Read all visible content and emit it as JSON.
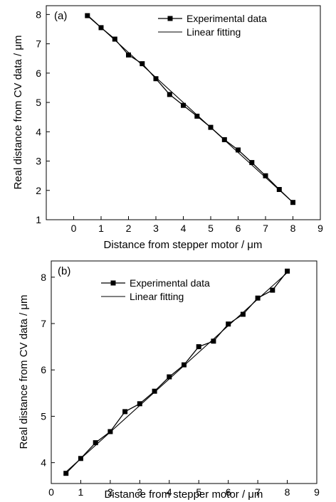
{
  "chart_data": [
    {
      "type": "line",
      "panel_label": "(a)",
      "xlabel": "Distance from stepper motor / μm",
      "ylabel": "Real distance from  CV data / μm",
      "xlim": [
        -1,
        9
      ],
      "ylim": [
        1,
        8.3
      ],
      "xticks": [
        0,
        1,
        2,
        3,
        4,
        5,
        6,
        7,
        8,
        9
      ],
      "yticks": [
        1,
        2,
        3,
        4,
        5,
        6,
        7,
        8
      ],
      "grid": false,
      "legend_position": "top-right",
      "series": [
        {
          "name": "Experimental data",
          "style": "line-with-square-markers",
          "color": "#000000",
          "x": [
            0.5,
            1.0,
            1.5,
            2.0,
            2.5,
            3.0,
            3.5,
            4.0,
            4.5,
            5.0,
            5.5,
            6.0,
            6.5,
            7.0,
            7.5,
            8.0
          ],
          "y": [
            7.96,
            7.55,
            7.16,
            6.62,
            6.32,
            5.81,
            5.27,
            4.9,
            4.53,
            4.15,
            3.73,
            3.38,
            2.95,
            2.5,
            2.03,
            1.59
          ]
        },
        {
          "name": "Linear fitting",
          "style": "line",
          "color": "#000000",
          "x": [
            0.5,
            8.0
          ],
          "y": [
            7.98,
            1.59
          ]
        }
      ]
    },
    {
      "type": "line",
      "panel_label": "(b)",
      "xlabel": "Distance from stepper motor / μm",
      "ylabel": "Real distance from CV data / μm",
      "xlim": [
        0,
        9
      ],
      "ylim": [
        3.55,
        8.35
      ],
      "xticks": [
        0,
        1,
        2,
        3,
        4,
        5,
        6,
        7,
        8,
        9
      ],
      "yticks": [
        4,
        5,
        6,
        7,
        8
      ],
      "grid": false,
      "legend_position": "top-left",
      "series": [
        {
          "name": "Experimental data",
          "style": "line-with-square-markers",
          "color": "#000000",
          "x": [
            0.5,
            1.0,
            1.5,
            2.0,
            2.5,
            3.0,
            3.5,
            4.0,
            4.5,
            5.0,
            5.5,
            6.0,
            6.5,
            7.0,
            7.5,
            8.0
          ],
          "y": [
            3.77,
            4.09,
            4.43,
            4.67,
            5.1,
            5.27,
            5.54,
            5.85,
            6.11,
            6.5,
            6.62,
            6.99,
            7.2,
            7.55,
            7.72,
            8.13
          ]
        },
        {
          "name": "Linear fitting",
          "style": "line",
          "color": "#000000",
          "x": [
            0.5,
            8.0
          ],
          "y": [
            3.8,
            8.1
          ]
        }
      ]
    }
  ]
}
